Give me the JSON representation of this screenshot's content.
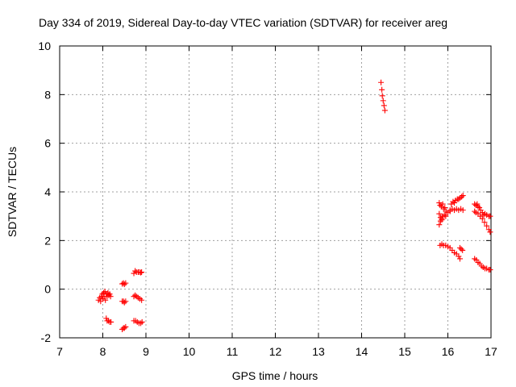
{
  "chart_data": {
    "type": "scatter",
    "title": "Day 334 of 2019, Sidereal Day-to-day VTEC variation (SDTVAR) for receiver areg",
    "xlabel": "GPS time / hours",
    "ylabel": "SDTVAR / TECUs",
    "xlim": [
      7,
      17
    ],
    "ylim": [
      -2,
      10
    ],
    "xticks": [
      "7",
      "8",
      "9",
      "10",
      "11",
      "12",
      "13",
      "14",
      "15",
      "16",
      "17"
    ],
    "yticks": [
      "-2",
      "0",
      "2",
      "4",
      "6",
      "8",
      "10"
    ],
    "grid": true,
    "marker": "plus",
    "color": "#ff0000",
    "series": [
      {
        "name": "SDTVAR",
        "points": [
          [
            7.9,
            -0.45
          ],
          [
            7.93,
            -0.35
          ],
          [
            7.95,
            -0.5
          ],
          [
            7.97,
            -0.3
          ],
          [
            7.99,
            -0.2
          ],
          [
            8.0,
            -0.4
          ],
          [
            8.02,
            -0.15
          ],
          [
            8.03,
            -0.3
          ],
          [
            8.05,
            -0.1
          ],
          [
            8.06,
            -0.45
          ],
          [
            8.08,
            -0.2
          ],
          [
            8.1,
            -0.3
          ],
          [
            8.12,
            -0.15
          ],
          [
            8.14,
            -0.25
          ],
          [
            8.16,
            -0.2
          ],
          [
            8.18,
            -0.3
          ],
          [
            8.08,
            -1.2
          ],
          [
            8.1,
            -1.3
          ],
          [
            8.13,
            -1.3
          ],
          [
            8.16,
            -1.35
          ],
          [
            8.19,
            -1.35
          ],
          [
            8.45,
            0.22
          ],
          [
            8.48,
            0.25
          ],
          [
            8.5,
            0.2
          ],
          [
            8.53,
            0.25
          ],
          [
            8.45,
            -0.5
          ],
          [
            8.48,
            -0.5
          ],
          [
            8.5,
            -0.55
          ],
          [
            8.53,
            -0.5
          ],
          [
            8.45,
            -1.65
          ],
          [
            8.48,
            -1.6
          ],
          [
            8.5,
            -1.6
          ],
          [
            8.53,
            -1.55
          ],
          [
            8.72,
            0.65
          ],
          [
            8.75,
            0.75
          ],
          [
            8.78,
            0.7
          ],
          [
            8.82,
            0.7
          ],
          [
            8.85,
            0.7
          ],
          [
            8.88,
            0.68
          ],
          [
            8.9,
            0.7
          ],
          [
            8.72,
            -0.3
          ],
          [
            8.75,
            -0.25
          ],
          [
            8.78,
            -0.3
          ],
          [
            8.82,
            -0.35
          ],
          [
            8.86,
            -0.4
          ],
          [
            8.9,
            -0.45
          ],
          [
            8.72,
            -1.3
          ],
          [
            8.76,
            -1.3
          ],
          [
            8.8,
            -1.35
          ],
          [
            8.84,
            -1.4
          ],
          [
            8.88,
            -1.4
          ],
          [
            8.91,
            -1.35
          ],
          [
            14.45,
            8.5
          ],
          [
            14.47,
            8.2
          ],
          [
            14.48,
            7.95
          ],
          [
            14.5,
            7.75
          ],
          [
            14.52,
            7.55
          ],
          [
            14.54,
            7.35
          ],
          [
            15.8,
            3.55
          ],
          [
            15.82,
            3.45
          ],
          [
            15.85,
            3.4
          ],
          [
            15.88,
            3.5
          ],
          [
            15.9,
            3.3
          ],
          [
            15.93,
            3.35
          ],
          [
            15.96,
            3.2
          ],
          [
            15.8,
            3.1
          ],
          [
            15.83,
            2.95
          ],
          [
            15.86,
            2.85
          ],
          [
            15.88,
            3.0
          ],
          [
            15.92,
            3.05
          ],
          [
            15.95,
            3.0
          ],
          [
            15.8,
            2.65
          ],
          [
            15.83,
            2.8
          ],
          [
            15.86,
            2.9
          ],
          [
            16.0,
            3.15
          ],
          [
            16.05,
            3.2
          ],
          [
            16.08,
            3.5
          ],
          [
            16.12,
            3.6
          ],
          [
            16.15,
            3.55
          ],
          [
            16.18,
            3.65
          ],
          [
            16.22,
            3.7
          ],
          [
            16.25,
            3.7
          ],
          [
            16.28,
            3.75
          ],
          [
            16.32,
            3.8
          ],
          [
            16.35,
            3.85
          ],
          [
            16.05,
            3.25
          ],
          [
            16.1,
            3.3
          ],
          [
            16.15,
            3.25
          ],
          [
            16.2,
            3.3
          ],
          [
            16.25,
            3.25
          ],
          [
            16.3,
            3.3
          ],
          [
            16.35,
            3.25
          ],
          [
            15.82,
            1.8
          ],
          [
            15.86,
            1.85
          ],
          [
            15.9,
            1.8
          ],
          [
            15.95,
            1.8
          ],
          [
            16.0,
            1.75
          ],
          [
            16.05,
            1.7
          ],
          [
            16.1,
            1.6
          ],
          [
            16.15,
            1.5
          ],
          [
            16.2,
            1.45
          ],
          [
            16.25,
            1.35
          ],
          [
            16.28,
            1.25
          ],
          [
            16.28,
            1.7
          ],
          [
            16.31,
            1.65
          ],
          [
            16.34,
            1.6
          ],
          [
            16.62,
            3.5
          ],
          [
            16.65,
            3.45
          ],
          [
            16.68,
            3.5
          ],
          [
            16.7,
            3.4
          ],
          [
            16.73,
            3.35
          ],
          [
            16.76,
            3.25
          ],
          [
            16.8,
            3.15
          ],
          [
            16.83,
            3.05
          ],
          [
            16.86,
            3.1
          ],
          [
            16.9,
            3.05
          ],
          [
            16.95,
            3.0
          ],
          [
            16.98,
            3.0
          ],
          [
            16.62,
            3.2
          ],
          [
            16.65,
            3.15
          ],
          [
            16.7,
            3.1
          ],
          [
            16.75,
            3.0
          ],
          [
            16.8,
            2.9
          ],
          [
            16.85,
            2.75
          ],
          [
            16.9,
            2.6
          ],
          [
            16.95,
            2.45
          ],
          [
            16.98,
            2.35
          ],
          [
            16.62,
            1.25
          ],
          [
            16.66,
            1.2
          ],
          [
            16.7,
            1.1
          ],
          [
            16.74,
            1.05
          ],
          [
            16.78,
            0.95
          ],
          [
            16.82,
            0.9
          ],
          [
            16.86,
            0.85
          ],
          [
            16.9,
            0.85
          ],
          [
            16.95,
            0.8
          ],
          [
            16.98,
            0.8
          ]
        ]
      }
    ]
  }
}
